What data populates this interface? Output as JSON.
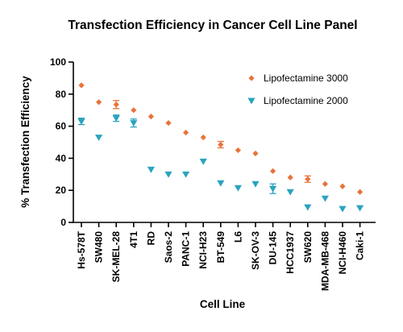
{
  "chart_data": {
    "type": "scatter",
    "title": "Transfection Efficiency in Cancer Cell Line Panel",
    "xlabel": "Cell Line",
    "ylabel": "% Transfection Efficiency",
    "ylim": [
      0,
      100
    ],
    "yticks": [
      0,
      20,
      40,
      60,
      80,
      100
    ],
    "grid": false,
    "legend_position": "top-right",
    "categories": [
      "Hs-578T",
      "SW480",
      "SK-MEL-28",
      "4T1",
      "RD",
      "Saos-2",
      "PANC-1",
      "NCI-H23",
      "BT-549",
      "L6",
      "SK-OV-3",
      "DU-145",
      "HCC1937",
      "SW620",
      "MDA-MB-468",
      "NCI-H460",
      "Caki-1"
    ],
    "series": [
      {
        "name": "Lipofectamine  3000",
        "marker": "diamond",
        "color": "#E8733A",
        "values": [
          85.5,
          75,
          73.5,
          70,
          66,
          62,
          56,
          53,
          48.5,
          45,
          43,
          32,
          28,
          27,
          24,
          22.5,
          19
        ],
        "errors": [
          0,
          0,
          2.5,
          0,
          0,
          0,
          0,
          0,
          2,
          0,
          0,
          0,
          0,
          2,
          0,
          0,
          0
        ]
      },
      {
        "name": "Lipofectamine  2000",
        "marker": "triangle-down",
        "color": "#2AA3BE",
        "values": [
          63,
          53,
          65,
          62,
          33,
          30,
          30,
          38,
          24.5,
          21.5,
          24,
          21,
          19,
          9.5,
          15,
          8.5,
          9
        ],
        "errors": [
          2,
          0,
          2,
          2.5,
          0,
          0,
          0,
          0,
          0,
          0,
          0,
          3,
          0,
          0,
          0,
          0,
          0
        ]
      }
    ]
  }
}
